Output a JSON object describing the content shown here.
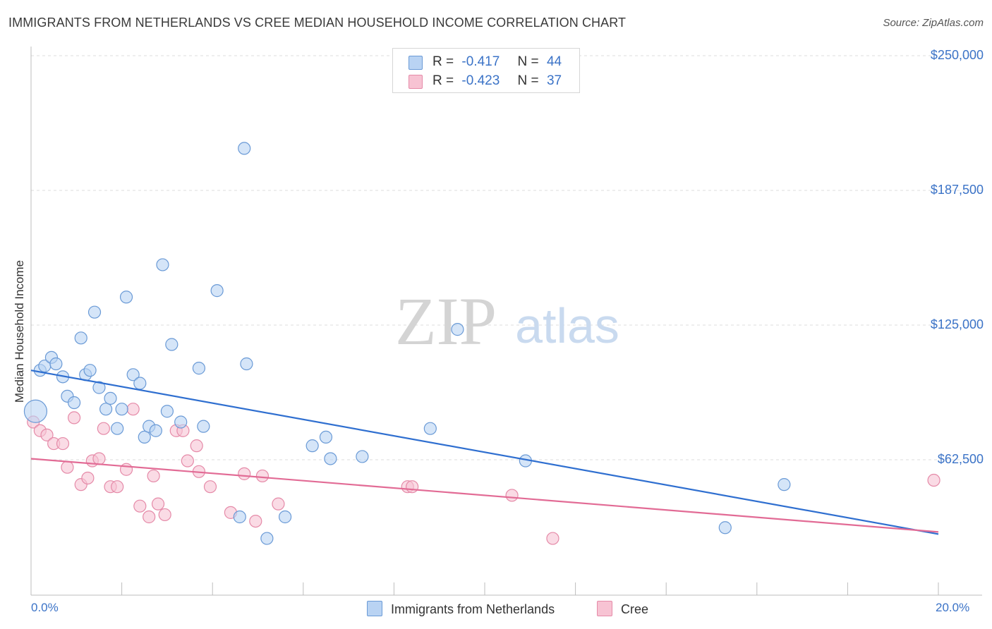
{
  "title": "IMMIGRANTS FROM NETHERLANDS VS CREE MEDIAN HOUSEHOLD INCOME CORRELATION CHART",
  "source": "Source: ZipAtlas.com",
  "watermark": {
    "zip": "ZIP",
    "atlas": "atlas"
  },
  "legend": {
    "rows": [
      {
        "r_label": "R =",
        "r_value": "-0.417",
        "n_label": "N =",
        "n_value": "44"
      },
      {
        "r_label": "R =",
        "r_value": "-0.423",
        "n_label": "N =",
        "n_value": "37"
      }
    ]
  },
  "bottom_legend": {
    "series1": "Immigrants from Netherlands",
    "series2": "Cree"
  },
  "colors": {
    "series1_fill": "#b9d3f3",
    "series1_stroke": "#6a9ad6",
    "series1_line": "#2f6fd0",
    "series2_fill": "#f7c3d3",
    "series2_stroke": "#e58aa8",
    "series2_line": "#e26b95",
    "accent_text": "#3b73c7",
    "grid": "#dcdcdc"
  },
  "chart_data": {
    "type": "scatter",
    "title": "IMMIGRANTS FROM NETHERLANDS VS CREE MEDIAN HOUSEHOLD INCOME CORRELATION CHART",
    "xlabel": "",
    "ylabel": "Median Household Income",
    "xlim": [
      0,
      20
    ],
    "ylim": [
      0,
      262000
    ],
    "x_tick_labels": [
      "0.0%",
      "20.0%"
    ],
    "y_ticks": [
      62500,
      125000,
      187500,
      250000
    ],
    "y_tick_labels": [
      "$62,500",
      "$125,000",
      "$187,500",
      "$250,000"
    ],
    "series": [
      {
        "name": "Immigrants from Netherlands",
        "r": -0.417,
        "n": 44,
        "trend": {
          "x": [
            0,
            20
          ],
          "y": [
            104000,
            28000
          ]
        },
        "points": [
          [
            0.1,
            85000,
            "big"
          ],
          [
            0.2,
            104000
          ],
          [
            0.3,
            106000
          ],
          [
            0.45,
            110000
          ],
          [
            0.55,
            107000
          ],
          [
            0.7,
            101000
          ],
          [
            0.8,
            92000
          ],
          [
            0.95,
            89000
          ],
          [
            1.1,
            119000
          ],
          [
            1.2,
            102000
          ],
          [
            1.3,
            104000
          ],
          [
            1.4,
            131000
          ],
          [
            1.5,
            96000
          ],
          [
            1.65,
            86000
          ],
          [
            1.75,
            91000
          ],
          [
            1.9,
            77000
          ],
          [
            2.0,
            86000
          ],
          [
            2.1,
            138000
          ],
          [
            2.25,
            102000
          ],
          [
            2.4,
            98000
          ],
          [
            2.5,
            73000
          ],
          [
            2.6,
            78000
          ],
          [
            2.75,
            76000
          ],
          [
            2.9,
            153000
          ],
          [
            3.0,
            85000
          ],
          [
            3.1,
            116000
          ],
          [
            3.3,
            80000
          ],
          [
            3.7,
            105000
          ],
          [
            3.8,
            78000
          ],
          [
            4.1,
            141000
          ],
          [
            4.6,
            36000
          ],
          [
            4.7,
            207000
          ],
          [
            4.75,
            107000
          ],
          [
            5.2,
            26000
          ],
          [
            5.6,
            36000
          ],
          [
            6.2,
            69000
          ],
          [
            6.5,
            73000
          ],
          [
            6.6,
            63000
          ],
          [
            7.3,
            64000
          ],
          [
            8.8,
            77000
          ],
          [
            9.4,
            123000
          ],
          [
            10.9,
            62000
          ],
          [
            15.3,
            31000
          ],
          [
            16.6,
            51000
          ]
        ]
      },
      {
        "name": "Cree",
        "r": -0.423,
        "n": 37,
        "trend": {
          "x": [
            0,
            20
          ],
          "y": [
            63000,
            29000
          ]
        },
        "points": [
          [
            0.05,
            80000
          ],
          [
            0.2,
            76000
          ],
          [
            0.35,
            74000
          ],
          [
            0.5,
            70000
          ],
          [
            0.7,
            70000
          ],
          [
            0.8,
            59000
          ],
          [
            0.95,
            82000
          ],
          [
            1.1,
            51000
          ],
          [
            1.25,
            54000
          ],
          [
            1.35,
            62000
          ],
          [
            1.5,
            63000
          ],
          [
            1.6,
            77000
          ],
          [
            1.75,
            50000
          ],
          [
            1.9,
            50000
          ],
          [
            2.1,
            58000
          ],
          [
            2.25,
            86000
          ],
          [
            2.4,
            41000
          ],
          [
            2.6,
            36000
          ],
          [
            2.7,
            55000
          ],
          [
            2.8,
            42000
          ],
          [
            2.95,
            37000
          ],
          [
            3.2,
            76000
          ],
          [
            3.35,
            76000
          ],
          [
            3.45,
            62000
          ],
          [
            3.65,
            69000
          ],
          [
            3.7,
            57000
          ],
          [
            3.95,
            50000
          ],
          [
            4.4,
            38000
          ],
          [
            4.7,
            56000
          ],
          [
            4.95,
            34000
          ],
          [
            5.1,
            55000
          ],
          [
            5.45,
            42000
          ],
          [
            8.3,
            50000
          ],
          [
            8.4,
            50000
          ],
          [
            10.6,
            46000
          ],
          [
            11.5,
            26000
          ],
          [
            19.9,
            53000
          ]
        ]
      }
    ]
  }
}
